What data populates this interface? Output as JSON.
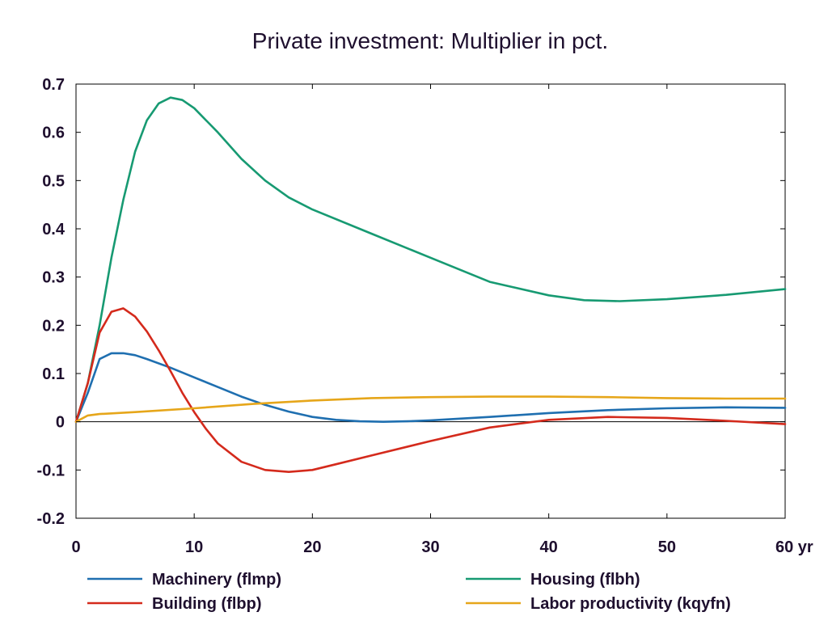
{
  "chart_data": {
    "type": "line",
    "title": "Private investment: Multiplier in pct.",
    "xlabel": "",
    "ylabel": "",
    "x_unit_label": "yr",
    "xlim": [
      0,
      60
    ],
    "ylim": [
      -0.2,
      0.7
    ],
    "x_ticks": [
      0,
      10,
      20,
      30,
      40,
      50,
      60
    ],
    "x_tick_labels": [
      "0",
      "10",
      "20",
      "30",
      "40",
      "50",
      "60 yr"
    ],
    "y_ticks": [
      -0.2,
      -0.1,
      0,
      0.1,
      0.2,
      0.3,
      0.4,
      0.5,
      0.6,
      0.7
    ],
    "y_tick_labels": [
      "-0.2",
      "-0.1",
      "0",
      "0.1",
      "0.2",
      "0.3",
      "0.4",
      "0.5",
      "0.6",
      "0.7"
    ],
    "grid": false,
    "zero_line": true,
    "legend_position": "bottom",
    "series": [
      {
        "name": "Machinery (flmp)",
        "color": "#1f6fb0",
        "x": [
          0,
          1,
          2,
          3,
          4,
          5,
          6,
          8,
          10,
          12,
          14,
          16,
          18,
          20,
          22,
          24,
          26,
          28,
          30,
          35,
          40,
          45,
          50,
          55,
          60
        ],
        "y": [
          0,
          0.06,
          0.13,
          0.142,
          0.142,
          0.138,
          0.13,
          0.112,
          0.092,
          0.072,
          0.052,
          0.035,
          0.021,
          0.01,
          0.004,
          0.001,
          0.0,
          0.001,
          0.003,
          0.01,
          0.018,
          0.024,
          0.028,
          0.03,
          0.029
        ]
      },
      {
        "name": "Housing (flbh)",
        "color": "#179a72",
        "x": [
          0,
          1,
          2,
          3,
          4,
          5,
          6,
          7,
          8,
          9,
          10,
          12,
          14,
          16,
          18,
          20,
          25,
          30,
          35,
          40,
          43,
          46,
          50,
          55,
          60
        ],
        "y": [
          0,
          0.08,
          0.2,
          0.34,
          0.46,
          0.56,
          0.625,
          0.66,
          0.672,
          0.667,
          0.65,
          0.6,
          0.545,
          0.5,
          0.465,
          0.44,
          0.39,
          0.34,
          0.29,
          0.262,
          0.252,
          0.25,
          0.254,
          0.263,
          0.275
        ]
      },
      {
        "name": "Building (flbp)",
        "color": "#d42a1c",
        "x": [
          0,
          1,
          2,
          3,
          4,
          5,
          6,
          7,
          8,
          9,
          10,
          11,
          12,
          14,
          16,
          18,
          20,
          22,
          25,
          30,
          35,
          40,
          45,
          50,
          55,
          60
        ],
        "y": [
          0,
          0.08,
          0.185,
          0.228,
          0.235,
          0.218,
          0.187,
          0.148,
          0.105,
          0.06,
          0.02,
          -0.015,
          -0.045,
          -0.083,
          -0.1,
          -0.104,
          -0.1,
          -0.088,
          -0.07,
          -0.04,
          -0.012,
          0.004,
          0.01,
          0.008,
          0.002,
          -0.005
        ]
      },
      {
        "name": "Labor productivity (kqyfn)",
        "color": "#e6a61a",
        "x": [
          0,
          1,
          2,
          5,
          10,
          15,
          20,
          25,
          30,
          35,
          40,
          45,
          50,
          55,
          60
        ],
        "y": [
          0,
          0.013,
          0.016,
          0.02,
          0.028,
          0.037,
          0.044,
          0.049,
          0.051,
          0.052,
          0.052,
          0.051,
          0.049,
          0.048,
          0.048
        ]
      }
    ]
  }
}
